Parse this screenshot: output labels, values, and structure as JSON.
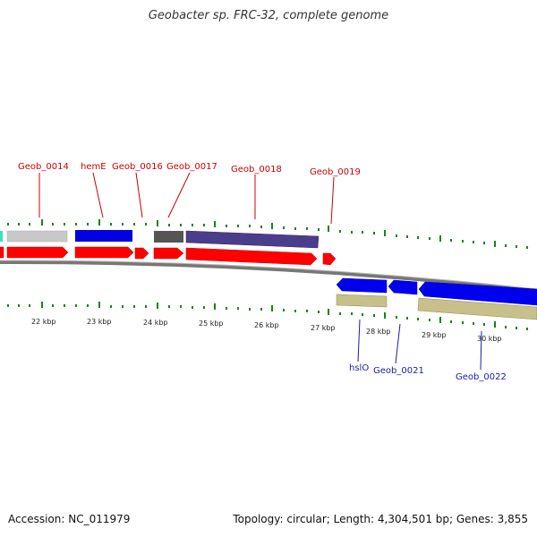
{
  "title": "Geobacter sp. FRC-32, complete genome",
  "accession": "Accession: NC_011979",
  "summary": "Topology: circular; Length: 4,304,501 bp; Genes: 3,855",
  "kbp_labels": [
    "22 kbp",
    "23 kbp",
    "24 kbp",
    "25 kbp",
    "26 kbp",
    "27 kbp",
    "28 kbp",
    "29 kbp",
    "30 kbp"
  ],
  "gene_labels_top": [
    "Geob_0014",
    "hemE",
    "Geob_0016",
    "Geob_0017",
    "Geob_0018",
    "Geob_0019"
  ],
  "gene_labels_bottom": [
    "hslO",
    "Geob_0021",
    "Geob_0022"
  ],
  "colors": {
    "forward_arrow": "#ff0000",
    "reverse_arrow": "#0000ee",
    "backbone": "#888888",
    "tick": "#118811",
    "label_red": "#cc0000",
    "label_blue": "#1a1aaa"
  }
}
